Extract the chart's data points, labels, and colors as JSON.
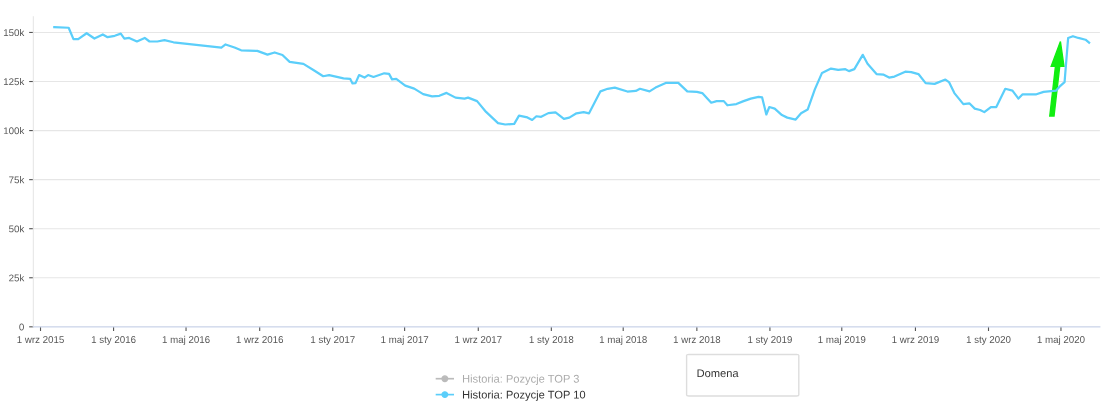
{
  "chart_data": {
    "type": "line",
    "x": [
      "2015-09-24",
      "2015-10-18",
      "2015-10-26",
      "2015-11-03",
      "2015-11-17",
      "2015-11-30",
      "2015-12-14",
      "2015-12-22",
      "2016-01-03",
      "2016-01-13",
      "2016-01-19",
      "2016-01-27",
      "2016-02-09",
      "2016-02-22",
      "2016-03-01",
      "2016-03-14",
      "2016-03-26",
      "2016-04-10",
      "2016-06-29",
      "2016-07-06",
      "2016-07-21",
      "2016-08-01",
      "2016-08-28",
      "2016-09-14",
      "2016-09-26",
      "2016-10-09",
      "2016-10-21",
      "2016-11-13",
      "2016-12-01",
      "2016-12-16",
      "2016-12-26",
      "2017-01-19",
      "2017-01-30",
      "2017-02-03",
      "2017-02-08",
      "2017-02-14",
      "2017-02-23",
      "2017-03-01",
      "2017-03-10",
      "2017-03-28",
      "2017-04-05",
      "2017-04-10",
      "2017-04-17",
      "2017-05-02",
      "2017-05-17",
      "2017-06-01",
      "2017-06-16",
      "2017-06-28",
      "2017-07-10",
      "2017-07-25",
      "2017-08-09",
      "2017-08-15",
      "2017-08-30",
      "2017-09-14",
      "2017-10-04",
      "2017-10-16",
      "2017-10-31",
      "2017-11-08",
      "2017-11-22",
      "2017-11-30",
      "2017-12-07",
      "2017-12-15",
      "2017-12-27",
      "2018-01-08",
      "2018-01-22",
      "2018-01-31",
      "2018-02-12",
      "2018-02-24",
      "2018-03-05",
      "2018-03-24",
      "2018-04-05",
      "2018-04-17",
      "2018-05-08",
      "2018-05-22",
      "2018-05-29",
      "2018-06-14",
      "2018-06-24",
      "2018-07-11",
      "2018-08-01",
      "2018-08-16",
      "2018-09-01",
      "2018-09-10",
      "2018-09-25",
      "2018-10-04",
      "2018-10-16",
      "2018-10-22",
      "2018-11-06",
      "2018-11-18",
      "2018-11-30",
      "2018-12-13",
      "2018-12-19",
      "2018-12-26",
      "2018-12-31",
      "2019-01-09",
      "2019-01-21",
      "2019-01-30",
      "2019-02-13",
      "2019-02-22",
      "2019-03-05",
      "2019-03-17",
      "2019-03-29",
      "2019-04-13",
      "2019-04-25",
      "2019-05-07",
      "2019-05-13",
      "2019-05-22",
      "2019-06-05",
      "2019-06-13",
      "2019-06-28",
      "2019-07-10",
      "2019-07-19",
      "2019-07-28",
      "2019-08-15",
      "2019-08-25",
      "2019-09-06",
      "2019-09-18",
      "2019-10-03",
      "2019-10-21",
      "2019-10-27",
      "2019-11-05",
      "2019-11-20",
      "2019-11-30",
      "2019-12-09",
      "2019-12-18",
      "2019-12-25",
      "2020-01-05",
      "2020-01-14",
      "2020-01-29",
      "2020-02-10",
      "2020-02-20",
      "2020-02-27",
      "2020-03-21",
      "2020-04-02",
      "2020-04-23",
      "2020-04-30",
      "2020-05-07",
      "2020-05-13",
      "2020-05-21",
      "2020-05-30",
      "2020-06-11",
      "2020-06-17"
    ],
    "series": [
      {
        "name": "Historia: Pozycje TOP 3",
        "color": "#bbbbbb",
        "values": [
          null,
          null,
          null,
          null,
          null,
          null,
          null,
          null,
          null,
          null,
          null,
          null,
          null,
          null,
          null,
          null,
          null,
          null,
          null,
          null,
          null,
          null,
          null,
          null,
          null,
          null,
          null,
          null,
          null,
          null,
          null,
          null,
          null,
          null,
          null,
          null,
          null,
          null,
          null,
          null,
          null,
          null,
          null,
          null,
          null,
          null,
          null,
          null,
          null,
          null,
          null,
          null,
          null,
          null,
          null,
          null,
          null,
          null,
          null,
          null,
          null,
          null,
          null,
          null,
          null,
          null,
          null,
          null,
          null,
          null,
          null,
          null,
          null,
          null,
          null,
          null,
          null,
          null,
          null,
          null,
          null,
          null,
          null,
          null,
          null,
          null,
          null,
          null,
          null,
          null,
          null,
          null,
          null,
          null,
          null,
          null,
          null,
          null,
          null,
          null,
          null,
          null,
          null,
          null,
          null,
          null,
          null,
          null,
          null,
          null,
          null,
          null,
          null,
          null,
          null,
          null,
          null,
          null,
          null,
          null,
          null,
          null,
          null,
          null,
          null,
          null,
          null,
          null,
          null,
          null,
          null,
          null,
          null,
          null,
          null,
          null,
          null,
          null,
          null,
          null,
          null
        ]
      },
      {
        "name": "Historia: Pozycje TOP 10",
        "color": "#5bcefa",
        "values": [
          152700,
          152400,
          146600,
          146600,
          149600,
          146900,
          149000,
          147600,
          148300,
          149400,
          146900,
          147200,
          145400,
          147200,
          145400,
          145400,
          146100,
          145000,
          142300,
          143900,
          142300,
          140900,
          140600,
          138700,
          139800,
          138500,
          135000,
          134000,
          130600,
          127700,
          128300,
          126600,
          126400,
          124000,
          124200,
          128300,
          127000,
          128300,
          127300,
          129200,
          128900,
          126100,
          126300,
          122900,
          121400,
          118600,
          117400,
          117700,
          119200,
          116800,
          116300,
          116800,
          115000,
          109500,
          103800,
          103100,
          103400,
          107600,
          106700,
          105400,
          107300,
          107000,
          108900,
          109300,
          106000,
          106600,
          108800,
          109400,
          108800,
          120000,
          121300,
          121900,
          119900,
          120200,
          121300,
          120000,
          121900,
          124300,
          124300,
          120000,
          119700,
          119100,
          114200,
          115000,
          115000,
          112900,
          113500,
          115000,
          116300,
          117200,
          116900,
          108200,
          112000,
          111200,
          107900,
          106600,
          105600,
          108800,
          110700,
          121000,
          129400,
          131600,
          130900,
          131300,
          130300,
          131300,
          138600,
          134100,
          128800,
          128500,
          127000,
          127500,
          130000,
          129800,
          128800,
          124200,
          123800,
          126000,
          124700,
          119100,
          113500,
          113900,
          111200,
          110500,
          109400,
          112000,
          112000,
          121300,
          120400,
          116300,
          118500,
          118500,
          119700,
          120400,
          122800,
          124700,
          147200,
          148100,
          147200,
          146300,
          144800
        ]
      }
    ],
    "xlim": [
      "2015-08-20",
      "2020-07-05"
    ],
    "xticks": [
      {
        "value": "2015-09-01",
        "label": "1 wrz 2015"
      },
      {
        "value": "2016-01-01",
        "label": "1 sty 2016"
      },
      {
        "value": "2016-05-01",
        "label": "1 maj 2016"
      },
      {
        "value": "2016-09-01",
        "label": "1 wrz 2016"
      },
      {
        "value": "2017-01-01",
        "label": "1 sty 2017"
      },
      {
        "value": "2017-05-01",
        "label": "1 maj 2017"
      },
      {
        "value": "2017-09-01",
        "label": "1 wrz 2017"
      },
      {
        "value": "2018-01-01",
        "label": "1 sty 2018"
      },
      {
        "value": "2018-05-01",
        "label": "1 maj 2018"
      },
      {
        "value": "2018-09-01",
        "label": "1 wrz 2018"
      },
      {
        "value": "2019-01-01",
        "label": "1 sty 2019"
      },
      {
        "value": "2019-05-01",
        "label": "1 maj 2019"
      },
      {
        "value": "2019-09-01",
        "label": "1 wrz 2019"
      },
      {
        "value": "2020-01-01",
        "label": "1 sty 2020"
      },
      {
        "value": "2020-05-01",
        "label": "1 maj 2020"
      }
    ],
    "ylim": [
      0,
      158000
    ],
    "yticks": [
      {
        "value": 0,
        "label": "0"
      },
      {
        "value": 25000,
        "label": "25k"
      },
      {
        "value": 50000,
        "label": "50k"
      },
      {
        "value": 75000,
        "label": "75k"
      },
      {
        "value": 100000,
        "label": "100k"
      },
      {
        "value": 125000,
        "label": "125k"
      },
      {
        "value": 150000,
        "label": "150k"
      }
    ],
    "grid": "y",
    "legend": "bottom",
    "marker": "none",
    "line_style": "solid",
    "annotations": [
      "Domena"
    ]
  }
}
